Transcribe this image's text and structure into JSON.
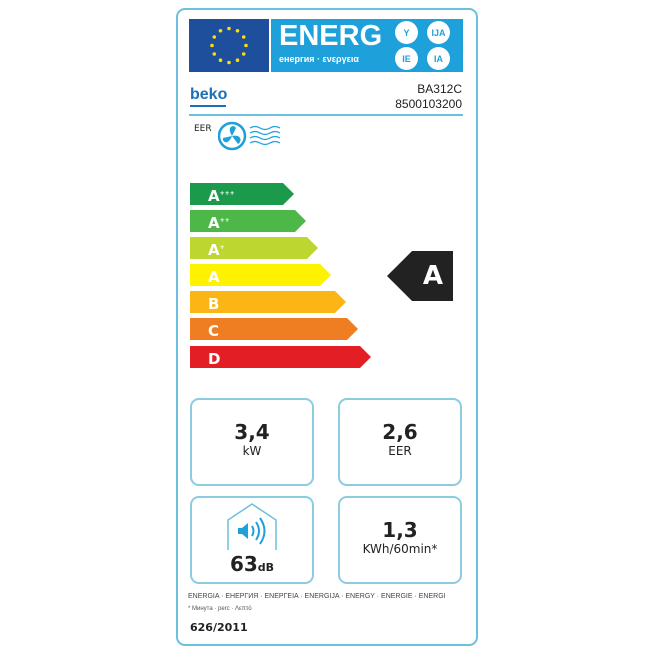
{
  "header": {
    "title": "ENERG",
    "subtitle": "енергия · ενεργεια",
    "suffixes": [
      "Y",
      "IJA",
      "IE",
      "IA"
    ]
  },
  "brand": "beko",
  "model": "BA312C",
  "code": "8500103200",
  "eer_label": "EER",
  "scale": [
    {
      "letter": "A",
      "plus": "+++",
      "color": "#1a9a4a"
    },
    {
      "letter": "A",
      "plus": "++",
      "color": "#4db848"
    },
    {
      "letter": "A",
      "plus": "+",
      "color": "#bdd630"
    },
    {
      "letter": "A",
      "plus": "",
      "color": "#fff200"
    },
    {
      "letter": "B",
      "plus": "",
      "color": "#fbb616"
    },
    {
      "letter": "C",
      "plus": "",
      "color": "#ef7d22"
    },
    {
      "letter": "D",
      "plus": "",
      "color": "#e31e24"
    }
  ],
  "rating": "A",
  "boxes": {
    "capacity": {
      "value": "3,4",
      "unit": "kW"
    },
    "eer": {
      "value": "2,6",
      "unit": "EER"
    },
    "noise": {
      "value": "63",
      "unit": "dB"
    },
    "consumption": {
      "value": "1,3",
      "unit": "KWh/60min*"
    }
  },
  "footer": {
    "languages": "ENERGIA · ЕНЕРГИЯ · ΕΝΕΡΓΕΙΑ · ENERGIJA · ENERGY · ENERGIE · ENERGI",
    "note": "* Минута · perc · Λεπτό",
    "regulation": "626/2011"
  }
}
